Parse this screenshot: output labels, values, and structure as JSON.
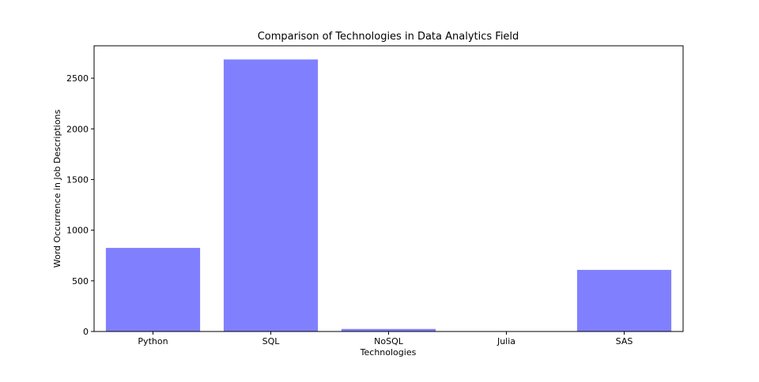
{
  "chart_data": {
    "type": "bar",
    "title": "Comparison of Technologies in Data Analytics Field",
    "xlabel": "Technologies",
    "ylabel": "Word Occurrence in Job Descriptions",
    "categories": [
      "Python",
      "SQL",
      "NoSQL",
      "Julia",
      "SAS"
    ],
    "values": [
      825,
      2685,
      25,
      0,
      608
    ],
    "ylim": [
      0,
      2820
    ],
    "yticks": [
      0,
      500,
      1000,
      1500,
      2000,
      2500
    ],
    "bar_color": "#8080ff",
    "grid": false,
    "legend": "none"
  }
}
